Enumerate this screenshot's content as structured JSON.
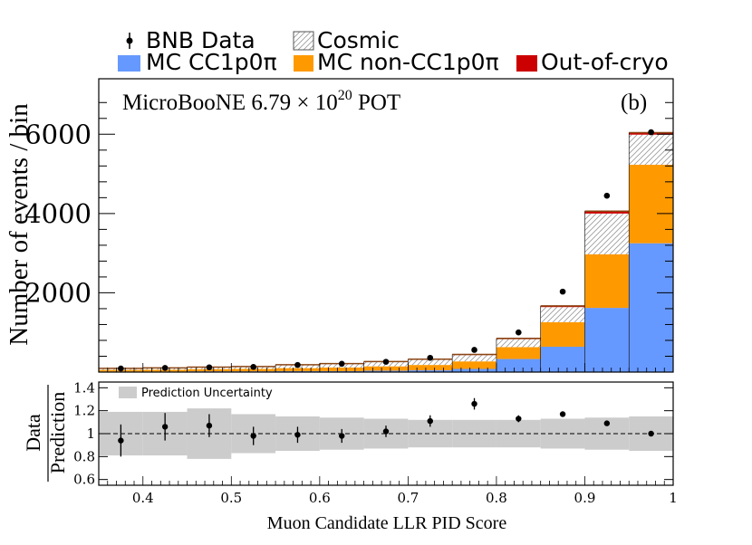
{
  "chart_data": [
    {
      "type": "bar",
      "subtype": "stacked-histogram",
      "panel_label": "(b)",
      "annotation": {
        "prefix": "MicroBooNE 6.79 × 10",
        "exponent": "20",
        "suffix": " POT"
      },
      "ylabel": "Number of events / bin",
      "ylim": [
        0,
        7400
      ],
      "yticks": [
        "2000",
        "4000",
        "6000"
      ],
      "bin_edges": [
        0.35,
        0.4,
        0.45,
        0.5,
        0.55,
        0.6,
        0.65,
        0.7,
        0.75,
        0.8,
        0.85,
        0.9,
        0.95,
        1.0
      ],
      "legend": {
        "data": "BNB Data",
        "cosmic": "Cosmic",
        "cc1p0pi": "MC CC1p0π",
        "noncc1p0pi": "MC non-CC1p0π",
        "outofcryo": "Out-of-cryo"
      },
      "colors": {
        "cc1p0pi": "#6699ff",
        "noncc1p0pi": "#ff9900",
        "outofcryo": "#cc0000",
        "cosmic_hatch": "#999999"
      },
      "series": [
        {
          "name": "MC CC1p0π",
          "values": [
            15,
            15,
            20,
            20,
            25,
            25,
            35,
            45,
            80,
            330,
            640,
            1620,
            3250
          ]
        },
        {
          "name": "MC non-CC1p0π",
          "values": [
            40,
            45,
            55,
            60,
            75,
            90,
            110,
            135,
            190,
            300,
            620,
            1350,
            1980
          ]
        },
        {
          "name": "Cosmic",
          "values": [
            35,
            40,
            45,
            55,
            75,
            90,
            110,
            130,
            160,
            200,
            380,
            1030,
            760
          ]
        },
        {
          "name": "Out-of-cryo",
          "values": [
            5,
            5,
            5,
            5,
            10,
            10,
            10,
            15,
            15,
            20,
            30,
            60,
            50
          ]
        }
      ],
      "data_points": {
        "name": "BNB Data",
        "x": [
          0.375,
          0.425,
          0.475,
          0.525,
          0.575,
          0.625,
          0.675,
          0.725,
          0.775,
          0.825,
          0.875,
          0.925,
          0.975
        ],
        "y": [
          90,
          105,
          120,
          130,
          180,
          210,
          260,
          360,
          560,
          1000,
          2030,
          4450,
          6050
        ]
      }
    },
    {
      "type": "scatter",
      "subtype": "ratio",
      "ylabel_top": "Data",
      "ylabel_bottom": "Prediction",
      "xlabel": "Muon Candidate LLR PID Score",
      "xlim": [
        0.35,
        1.0
      ],
      "ylim": [
        0.55,
        1.45
      ],
      "xticks": [
        "0.4",
        "0.5",
        "0.6",
        "0.7",
        "0.8",
        "0.9",
        "1"
      ],
      "xtick_values": [
        0.4,
        0.5,
        0.6,
        0.7,
        0.8,
        0.9,
        1.0
      ],
      "yticks": [
        "0.6",
        "0.8",
        "1",
        "1.2",
        "1.4"
      ],
      "ytick_values": [
        0.6,
        0.8,
        1.0,
        1.2,
        1.4
      ],
      "legend": "Prediction Uncertainty",
      "reference_line": 1.0,
      "band_halfwidth": [
        0.19,
        0.19,
        0.22,
        0.17,
        0.15,
        0.14,
        0.13,
        0.12,
        0.12,
        0.12,
        0.13,
        0.14,
        0.15
      ],
      "x": [
        0.375,
        0.425,
        0.475,
        0.525,
        0.575,
        0.625,
        0.675,
        0.725,
        0.775,
        0.825,
        0.875,
        0.925,
        0.975
      ],
      "y": [
        0.94,
        1.06,
        1.07,
        0.98,
        0.99,
        0.98,
        1.02,
        1.11,
        1.26,
        1.13,
        1.17,
        1.09,
        1.0
      ],
      "yerr": [
        0.14,
        0.12,
        0.1,
        0.08,
        0.07,
        0.06,
        0.05,
        0.05,
        0.05,
        0.03,
        0.02,
        0.015,
        0.01
      ]
    }
  ]
}
